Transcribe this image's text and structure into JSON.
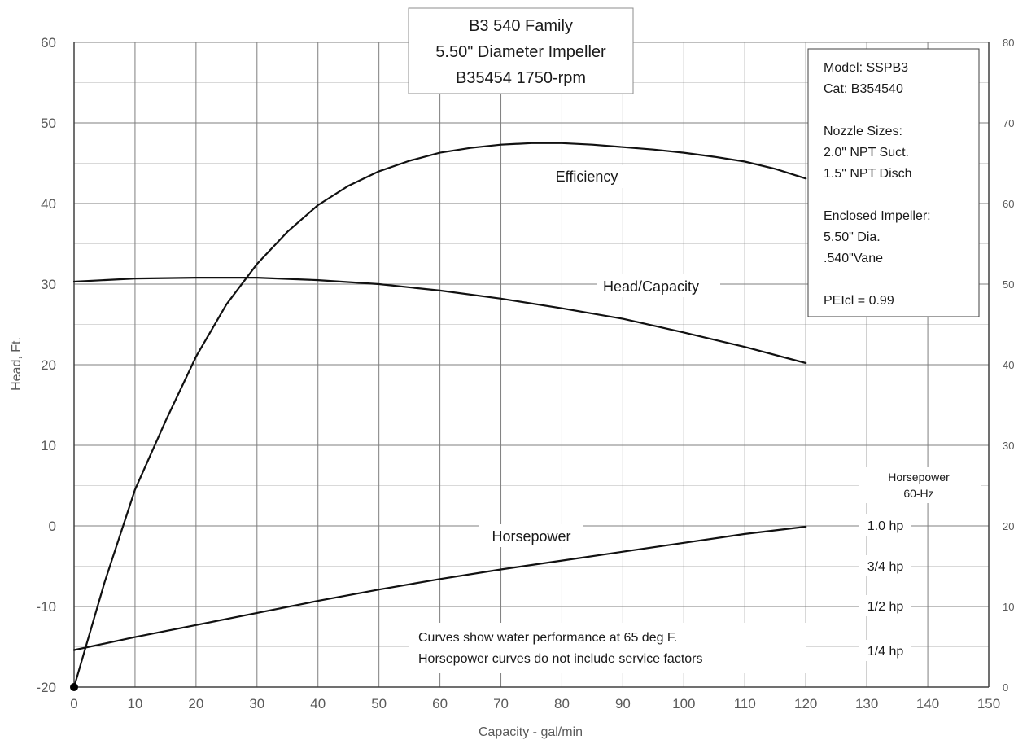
{
  "chart_data": {
    "type": "line",
    "title": [
      "B3 540 Family",
      "5.50\" Diameter Impeller",
      "B35454 1750-rpm"
    ],
    "xlabel": "Capacity - gal/min",
    "ylabel": "Head, Ft.",
    "xlim": [
      0,
      150
    ],
    "ylim": [
      -20,
      60
    ],
    "y2lim": [
      0,
      80
    ],
    "x_ticks": [
      0,
      10,
      20,
      30,
      40,
      50,
      60,
      70,
      80,
      90,
      100,
      110,
      120,
      130,
      140,
      150
    ],
    "y_ticks": [
      -20,
      -10,
      0,
      10,
      20,
      30,
      40,
      50,
      60
    ],
    "y2_ticks": [
      0,
      10,
      20,
      30,
      40,
      50,
      60,
      70,
      80
    ],
    "grid": true,
    "series": [
      {
        "name": "Head/Capacity",
        "axis": "left",
        "x": [
          0,
          10,
          20,
          30,
          40,
          50,
          60,
          70,
          80,
          90,
          100,
          110,
          120
        ],
        "y": [
          30.3,
          30.7,
          30.8,
          30.8,
          30.5,
          30.0,
          29.2,
          28.2,
          27.0,
          25.7,
          24.0,
          22.2,
          20.2
        ]
      },
      {
        "name": "Efficiency",
        "axis": "right",
        "x": [
          0,
          5,
          10,
          15,
          20,
          25,
          30,
          35,
          40,
          45,
          50,
          55,
          60,
          65,
          70,
          75,
          80,
          85,
          90,
          95,
          100,
          105,
          110,
          115,
          120
        ],
        "y": [
          0,
          13,
          24.5,
          33,
          41,
          47.5,
          52.5,
          56.5,
          59.8,
          62.2,
          64.0,
          65.3,
          66.3,
          66.9,
          67.3,
          67.5,
          67.5,
          67.3,
          67.0,
          66.7,
          66.3,
          65.8,
          65.2,
          64.3,
          63.1
        ]
      },
      {
        "name": "Horsepower",
        "axis": "right",
        "x": [
          0,
          10,
          20,
          30,
          40,
          50,
          60,
          70,
          80,
          90,
          100,
          110,
          120
        ],
        "y": [
          4.6,
          6.2,
          7.7,
          9.2,
          10.7,
          12.1,
          13.4,
          14.6,
          15.7,
          16.8,
          17.9,
          19.0,
          19.9
        ]
      }
    ],
    "curve_labels": {
      "efficiency": "Efficiency",
      "head": "Head/Capacity",
      "horsepower": "Horsepower"
    },
    "hp_scale": {
      "title": [
        "Horsepower",
        "60-Hz"
      ],
      "levels": [
        {
          "label": "1.0 hp",
          "y2": 20
        },
        {
          "label": "3/4 hp",
          "y2": 15
        },
        {
          "label": "1/2 hp",
          "y2": 10
        },
        {
          "label": "1/4 hp",
          "y2": 4.5
        }
      ]
    },
    "info_box": [
      "Model: SSPB3",
      "Cat: B354540",
      "",
      "Nozzle Sizes:",
      "2.0\" NPT Suct.",
      "1.5\" NPT Disch",
      "",
      "Enclosed Impeller:",
      "5.50\" Dia.",
      ".540\"Vane",
      "",
      "PEIcl =  0.99"
    ],
    "notes": [
      "Curves show water performance at 65 deg F.",
      "Horsepower curves do not include service factors"
    ]
  }
}
